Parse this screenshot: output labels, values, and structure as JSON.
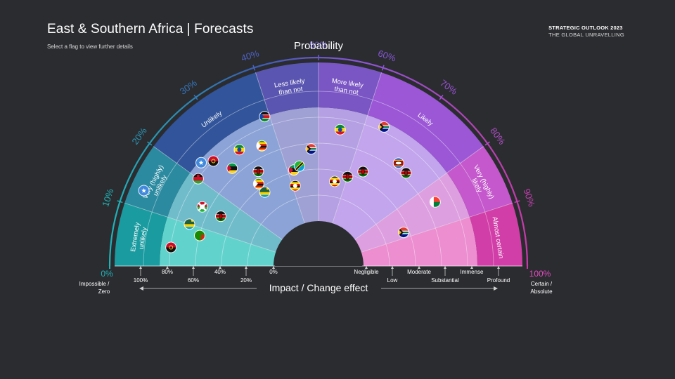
{
  "header": {
    "title": "East & Southern Africa | Forecasts",
    "subtitle": "Select a flag to view further details",
    "brand_line1": "STRATEGIC OUTLOOK 2023",
    "brand_line2": "THE GLOBAL UNRAVELLING"
  },
  "chart_data": {
    "type": "scatter",
    "title": "",
    "probability_axis": {
      "title": "Probability",
      "ticks": [
        "10%",
        "20%",
        "30%",
        "40%",
        "50%",
        "60%",
        "70%",
        "80%",
        "90%"
      ],
      "start_label": "0%",
      "start_sub": [
        "Impossible /",
        "Zero"
      ],
      "end_label": "100%",
      "end_sub": [
        "Certain /",
        "Absolute"
      ]
    },
    "probability_bands": [
      {
        "label": [
          "Extremely",
          "unlikely"
        ],
        "from": 0,
        "to": 10
      },
      {
        "label": [
          "Very (highly)",
          "unlikely"
        ],
        "from": 10,
        "to": 20
      },
      {
        "label": [
          "Unlikely"
        ],
        "from": 20,
        "to": 40
      },
      {
        "label": [
          "Less likely",
          "than not"
        ],
        "from": 40,
        "to": 50
      },
      {
        "label": [
          "More likely",
          "than not"
        ],
        "from": 50,
        "to": 60
      },
      {
        "label": [
          "Likely"
        ],
        "from": 60,
        "to": 80
      },
      {
        "label": [
          "Very (highly)",
          "likely"
        ],
        "from": 80,
        "to": 90
      },
      {
        "label": [
          "Almost certain"
        ],
        "from": 90,
        "to": 100
      }
    ],
    "impact_axis": {
      "title": "Impact / Change effect",
      "left_ticks": [
        "100%",
        "80%",
        "60%",
        "40%",
        "20%",
        "0%"
      ],
      "right_ticks": [
        "Negligible",
        "Low",
        "Moderate",
        "Substantial",
        "Immense",
        "Profound"
      ]
    },
    "points": [
      {
        "country": "Angola",
        "probability": 4,
        "impact": 4
      },
      {
        "country": "Zambia",
        "probability": 8,
        "impact": 3
      },
      {
        "country": "Rwanda",
        "probability": 10,
        "impact": 3.5
      },
      {
        "country": "Somalia",
        "probability": 13,
        "impact": 5.6
      },
      {
        "country": "Kenya",
        "probability": 15,
        "impact": 2.5
      },
      {
        "country": "Burundi",
        "probability": 15,
        "impact": 3.3
      },
      {
        "country": "Malawi",
        "probability": 20,
        "impact": 4
      },
      {
        "country": "Somalia",
        "probability": 23,
        "impact": 4.3
      },
      {
        "country": "Angola",
        "probability": 25,
        "impact": 4
      },
      {
        "country": "Mozambique",
        "probability": 27,
        "impact": 3.3
      },
      {
        "country": "Rwanda",
        "probability": 30,
        "impact": 1.8
      },
      {
        "country": "Zimbabwe",
        "probability": 30,
        "impact": 2.2
      },
      {
        "country": "Ethiopia",
        "probability": 31,
        "impact": 3.7
      },
      {
        "country": "Kenya",
        "probability": 32,
        "impact": 2.6
      },
      {
        "country": "Zimbabwe",
        "probability": 36,
        "impact": 3.4
      },
      {
        "country": "South Sudan",
        "probability": 39,
        "impact": 4.4
      },
      {
        "country": "Uganda",
        "probability": 41,
        "impact": 1.5
      },
      {
        "country": "Mozambique",
        "probability": 42,
        "impact": 2.1
      },
      {
        "country": "Tanzania",
        "probability": 44,
        "impact": 2.2
      },
      {
        "country": "South Africa",
        "probability": 48,
        "impact": 2.8
      },
      {
        "country": "Uganda",
        "probability": 56,
        "impact": 1.6
      },
      {
        "country": "Kenya",
        "probability": 60,
        "impact": 1.9
      },
      {
        "country": "Kenya",
        "probability": 64,
        "impact": 2.3
      },
      {
        "country": "Ethiopia",
        "probability": 55,
        "impact": 3.6
      },
      {
        "country": "South Africa",
        "probability": 64,
        "impact": 4.2
      },
      {
        "country": "Eswatini",
        "probability": 71,
        "impact": 3.3
      },
      {
        "country": "Kenya",
        "probability": 74,
        "impact": 3.2
      },
      {
        "country": "Madagascar",
        "probability": 84,
        "impact": 3.4
      },
      {
        "country": "South Africa",
        "probability": 88,
        "impact": 1.8
      }
    ]
  },
  "colors": {
    "background": "#2b2c30",
    "band_fills": [
      "#1a9ba0",
      "#2b8aa0",
      "#31549a",
      "#5a55b0",
      "#7a55c4",
      "#9b57d6",
      "#c458cc",
      "#d23ea8"
    ],
    "inner_fills": [
      "#62d2cd",
      "#70bcca",
      "#8ba3d6",
      "#9fa0d4",
      "#b4a0e2",
      "#c2a5ec",
      "#dd9fe0",
      "#ec8ed0"
    ],
    "arc_start": "#1fb3b7",
    "arc_end": "#c63aa9"
  }
}
